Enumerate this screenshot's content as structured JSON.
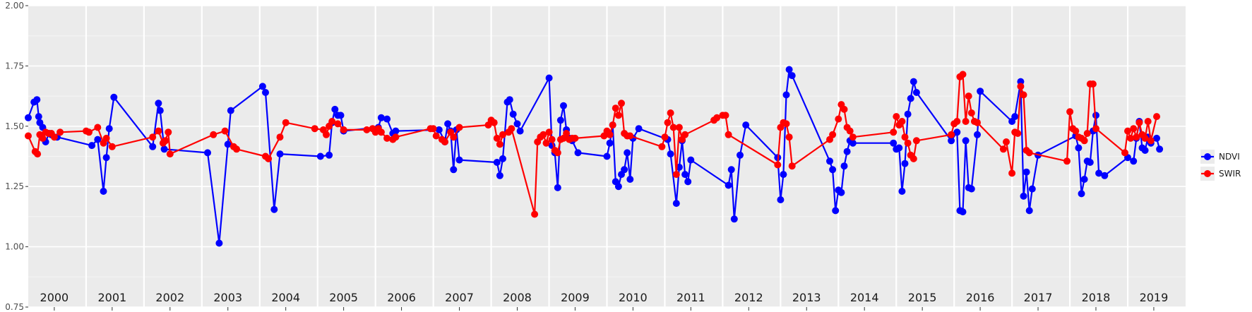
{
  "chart_data": {
    "type": "line",
    "title": "",
    "xlabel": "",
    "ylabel": "",
    "ylim": [
      0.75,
      2.0
    ],
    "yticks": [
      "0.75",
      "1.00",
      "1.25",
      "1.50",
      "1.75",
      "2.00"
    ],
    "ytick_values": [
      0.75,
      1.0,
      1.25,
      1.5,
      1.75,
      2.0
    ],
    "xlim": [
      2000,
      2020
    ],
    "facets": [
      "2000",
      "2001",
      "2002",
      "2003",
      "2004",
      "2005",
      "2006",
      "2007",
      "2008",
      "2009",
      "2010",
      "2011",
      "2012",
      "2013",
      "2014",
      "2015",
      "2016",
      "2017",
      "2018",
      "2019"
    ],
    "grid": true,
    "legend_position": "right",
    "series": [
      {
        "name": "NDVI",
        "color": "#0000ff",
        "x": [
          2000.0,
          2000.1,
          2000.15,
          2000.18,
          2000.2,
          2000.25,
          2000.3,
          2000.36,
          2000.4,
          2000.5,
          2001.1,
          2001.2,
          2001.3,
          2001.35,
          2001.4,
          2001.48,
          2002.15,
          2002.25,
          2002.28,
          2002.35,
          2003.1,
          2003.3,
          2003.45,
          2003.5,
          2004.05,
          2004.1,
          2004.25,
          2004.35,
          2005.05,
          2005.2,
          2005.25,
          2005.3,
          2005.35,
          2005.4,
          2005.45,
          2006.05,
          2006.1,
          2006.2,
          2006.3,
          2006.35,
          2007.1,
          2007.2,
          2007.25,
          2007.3,
          2007.35,
          2007.4,
          2007.45,
          2008.1,
          2008.15,
          2008.2,
          2008.28,
          2008.32,
          2008.38,
          2008.45,
          2008.5,
          2009.0,
          2009.05,
          2009.1,
          2009.15,
          2009.2,
          2009.25,
          2009.3,
          2009.35,
          2009.4,
          2009.5,
          2010.0,
          2010.05,
          2010.1,
          2010.15,
          2010.2,
          2010.25,
          2010.3,
          2010.35,
          2010.4,
          2010.45,
          2010.55,
          2011.05,
          2011.1,
          2011.2,
          2011.25,
          2011.3,
          2011.35,
          2011.4,
          2011.45,
          2012.1,
          2012.15,
          2012.2,
          2012.3,
          2012.4,
          2012.95,
          2013.0,
          2013.05,
          2013.1,
          2013.15,
          2013.2,
          2013.85,
          2013.9,
          2013.95,
          2014.0,
          2014.05,
          2014.1,
          2014.15,
          2014.2,
          2014.25,
          2014.95,
          2015.0,
          2015.05,
          2015.1,
          2015.15,
          2015.2,
          2015.25,
          2015.3,
          2015.35,
          2015.95,
          2016.05,
          2016.1,
          2016.15,
          2016.2,
          2016.25,
          2016.3,
          2016.4,
          2016.45,
          2017.0,
          2017.05,
          2017.15,
          2017.2,
          2017.25,
          2017.3,
          2017.35,
          2017.45,
          2018.1,
          2018.15,
          2018.2,
          2018.25,
          2018.3,
          2018.35,
          2018.4,
          2018.45,
          2018.5,
          2018.6,
          2019.0,
          2019.1,
          2019.15,
          2019.2,
          2019.25,
          2019.3,
          2019.35,
          2019.4,
          2019.5,
          2019.55
        ],
        "y": [
          1.535,
          1.6,
          1.61,
          1.54,
          1.515,
          1.495,
          1.435,
          1.47,
          1.465,
          1.455,
          1.42,
          1.445,
          1.23,
          1.37,
          1.49,
          1.62,
          1.415,
          1.595,
          1.565,
          1.405,
          1.39,
          1.015,
          1.425,
          1.565,
          1.665,
          1.64,
          1.155,
          1.385,
          1.375,
          1.38,
          1.515,
          1.57,
          1.545,
          1.545,
          1.48,
          1.495,
          1.535,
          1.53,
          1.47,
          1.48,
          1.485,
          1.435,
          1.51,
          1.48,
          1.32,
          1.485,
          1.36,
          1.35,
          1.295,
          1.365,
          1.6,
          1.61,
          1.55,
          1.51,
          1.48,
          1.7,
          1.42,
          1.39,
          1.245,
          1.525,
          1.585,
          1.485,
          1.45,
          1.44,
          1.39,
          1.375,
          1.43,
          1.505,
          1.27,
          1.25,
          1.3,
          1.32,
          1.39,
          1.28,
          1.45,
          1.49,
          1.445,
          1.385,
          1.18,
          1.33,
          1.44,
          1.3,
          1.27,
          1.36,
          1.255,
          1.32,
          1.115,
          1.38,
          1.505,
          1.37,
          1.195,
          1.3,
          1.63,
          1.735,
          1.71,
          1.355,
          1.32,
          1.15,
          1.235,
          1.225,
          1.335,
          1.395,
          1.44,
          1.43,
          1.43,
          1.405,
          1.41,
          1.23,
          1.345,
          1.55,
          1.615,
          1.685,
          1.64,
          1.44,
          1.475,
          1.15,
          1.145,
          1.44,
          1.245,
          1.24,
          1.465,
          1.645,
          1.52,
          1.54,
          1.685,
          1.21,
          1.31,
          1.15,
          1.24,
          1.38,
          1.46,
          1.41,
          1.22,
          1.28,
          1.355,
          1.35,
          1.48,
          1.545,
          1.305,
          1.295,
          1.37,
          1.355,
          1.45,
          1.52,
          1.41,
          1.4,
          1.455,
          1.43,
          1.45,
          1.405
        ]
      },
      {
        "name": "SWIR",
        "color": "#ff0000",
        "x": [
          2000.0,
          2000.12,
          2000.16,
          2000.2,
          2000.25,
          2000.3,
          2000.35,
          2000.4,
          2000.45,
          2000.55,
          2001.0,
          2001.05,
          2001.2,
          2001.3,
          2001.35,
          2001.45,
          2002.15,
          2002.25,
          2002.33,
          2002.37,
          2002.42,
          2002.45,
          2003.2,
          2003.4,
          2003.55,
          2003.6,
          2004.1,
          2004.15,
          2004.35,
          2004.45,
          2004.95,
          2005.1,
          2005.15,
          2005.2,
          2005.25,
          2005.35,
          2005.45,
          2005.85,
          2005.95,
          2006.0,
          2006.05,
          2006.1,
          2006.2,
          2006.3,
          2006.35,
          2006.95,
          2007.0,
          2007.05,
          2007.15,
          2007.2,
          2007.3,
          2007.35,
          2007.45,
          2007.95,
          2008.0,
          2008.05,
          2008.1,
          2008.15,
          2008.2,
          2008.3,
          2008.35,
          2008.75,
          2008.8,
          2008.85,
          2008.9,
          2008.95,
          2009.0,
          2009.05,
          2009.1,
          2009.15,
          2009.2,
          2009.25,
          2009.3,
          2009.35,
          2009.4,
          2009.45,
          2009.95,
          2010.0,
          2010.05,
          2010.1,
          2010.15,
          2010.2,
          2010.25,
          2010.3,
          2010.35,
          2010.4,
          2010.95,
          2011.0,
          2011.05,
          2011.1,
          2011.15,
          2011.2,
          2011.25,
          2011.3,
          2011.35,
          2011.85,
          2011.9,
          2012.0,
          2012.05,
          2012.1,
          2012.95,
          2013.0,
          2013.05,
          2013.1,
          2013.15,
          2013.2,
          2013.85,
          2013.9,
          2014.0,
          2014.05,
          2014.1,
          2014.15,
          2014.2,
          2014.25,
          2014.95,
          2015.0,
          2015.05,
          2015.1,
          2015.15,
          2015.2,
          2015.25,
          2015.3,
          2015.35,
          2015.95,
          2016.0,
          2016.05,
          2016.1,
          2016.15,
          2016.2,
          2016.25,
          2016.3,
          2016.35,
          2016.4,
          2016.85,
          2016.9,
          2017.0,
          2017.05,
          2017.1,
          2017.15,
          2017.2,
          2017.25,
          2017.3,
          2017.95,
          2018.0,
          2018.05,
          2018.1,
          2018.15,
          2018.2,
          2018.25,
          2018.3,
          2018.35,
          2018.4,
          2018.45,
          2018.95,
          2019.0,
          2019.05,
          2019.1,
          2019.15,
          2019.2,
          2019.25,
          2019.3,
          2019.35,
          2019.4,
          2019.5
        ],
        "y": [
          1.46,
          1.395,
          1.385,
          1.465,
          1.45,
          1.475,
          1.47,
          1.47,
          1.455,
          1.475,
          1.48,
          1.475,
          1.495,
          1.43,
          1.45,
          1.415,
          1.455,
          1.48,
          1.43,
          1.44,
          1.475,
          1.385,
          1.465,
          1.48,
          1.415,
          1.405,
          1.375,
          1.365,
          1.455,
          1.515,
          1.49,
          1.485,
          1.465,
          1.5,
          1.52,
          1.51,
          1.485,
          1.485,
          1.49,
          1.475,
          1.49,
          1.475,
          1.45,
          1.445,
          1.455,
          1.49,
          1.49,
          1.46,
          1.445,
          1.435,
          1.475,
          1.455,
          1.495,
          1.505,
          1.525,
          1.515,
          1.45,
          1.425,
          1.465,
          1.475,
          1.49,
          1.135,
          1.435,
          1.455,
          1.465,
          1.43,
          1.475,
          1.445,
          1.4,
          1.39,
          1.445,
          1.45,
          1.47,
          1.445,
          1.45,
          1.45,
          1.46,
          1.48,
          1.465,
          1.505,
          1.575,
          1.545,
          1.595,
          1.47,
          1.46,
          1.46,
          1.415,
          1.455,
          1.515,
          1.555,
          1.495,
          1.3,
          1.495,
          1.445,
          1.465,
          1.525,
          1.535,
          1.545,
          1.545,
          1.465,
          1.34,
          1.495,
          1.515,
          1.51,
          1.455,
          1.335,
          1.445,
          1.465,
          1.53,
          1.59,
          1.57,
          1.495,
          1.48,
          1.455,
          1.475,
          1.54,
          1.505,
          1.52,
          1.455,
          1.43,
          1.38,
          1.365,
          1.44,
          1.465,
          1.51,
          1.52,
          1.705,
          1.715,
          1.52,
          1.625,
          1.555,
          1.52,
          1.515,
          1.405,
          1.435,
          1.305,
          1.475,
          1.47,
          1.665,
          1.63,
          1.4,
          1.39,
          1.355,
          1.56,
          1.49,
          1.48,
          1.455,
          1.45,
          1.44,
          1.47,
          1.675,
          1.675,
          1.49,
          1.39,
          1.48,
          1.45,
          1.49,
          1.455,
          1.515,
          1.465,
          1.45,
          1.52,
          1.44,
          1.54
        ]
      }
    ]
  }
}
